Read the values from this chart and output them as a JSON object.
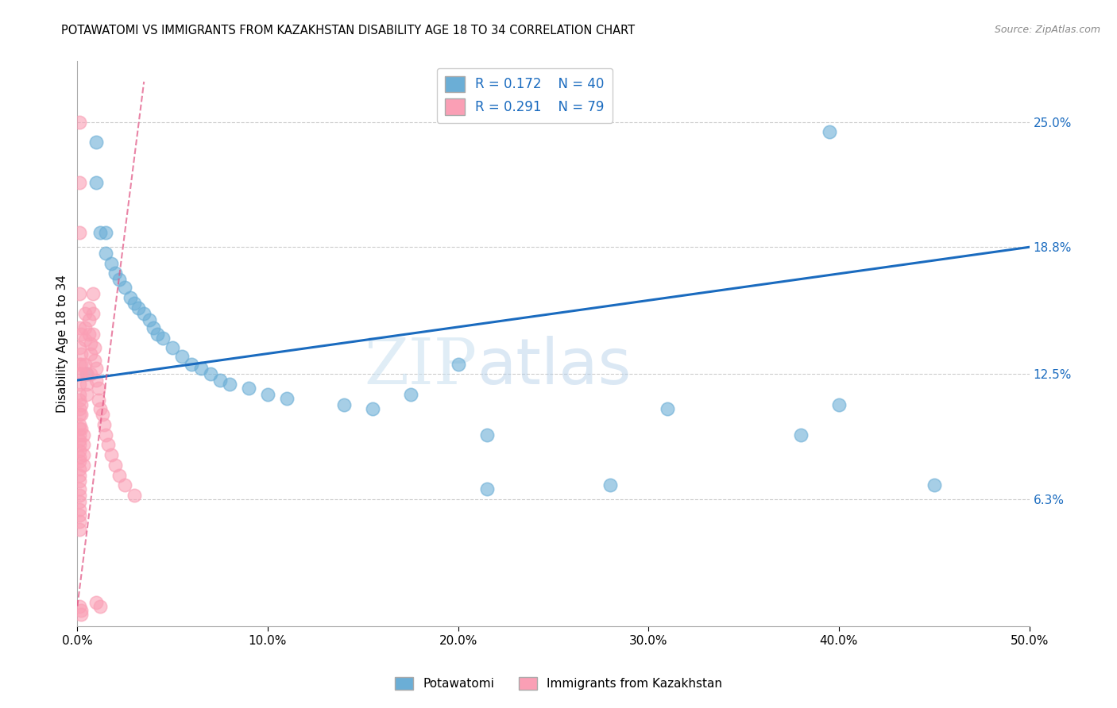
{
  "title": "POTAWATOMI VS IMMIGRANTS FROM KAZAKHSTAN DISABILITY AGE 18 TO 34 CORRELATION CHART",
  "source": "Source: ZipAtlas.com",
  "xlabel": "",
  "ylabel": "Disability Age 18 to 34",
  "xlim": [
    0.0,
    0.5
  ],
  "ylim": [
    0.0,
    0.28
  ],
  "yticks": [
    0.063,
    0.125,
    0.188,
    0.25
  ],
  "ytick_labels": [
    "6.3%",
    "12.5%",
    "18.8%",
    "25.0%"
  ],
  "xticks": [
    0.0,
    0.1,
    0.2,
    0.3,
    0.4,
    0.5
  ],
  "xtick_labels": [
    "0.0%",
    "10.0%",
    "20.0%",
    "30.0%",
    "40.0%",
    "50.0%"
  ],
  "legend_r1": "R = 0.172",
  "legend_n1": "N = 40",
  "legend_r2": "R = 0.291",
  "legend_n2": "N = 79",
  "blue_color": "#6baed6",
  "pink_color": "#fa9fb5",
  "trend_blue": "#1a6bbf",
  "trend_pink": "#e05080",
  "watermark": "ZIPatlas",
  "blue_x": [
    0.005,
    0.01,
    0.01,
    0.012,
    0.015,
    0.015,
    0.018,
    0.02,
    0.022,
    0.025,
    0.028,
    0.03,
    0.032,
    0.035,
    0.038,
    0.04,
    0.042,
    0.045,
    0.05,
    0.055,
    0.06,
    0.065,
    0.07,
    0.075,
    0.08,
    0.09,
    0.1,
    0.11,
    0.14,
    0.155,
    0.175,
    0.2,
    0.215,
    0.215,
    0.28,
    0.31,
    0.38,
    0.4,
    0.395,
    0.45
  ],
  "blue_y": [
    0.125,
    0.24,
    0.22,
    0.195,
    0.195,
    0.185,
    0.18,
    0.175,
    0.172,
    0.168,
    0.163,
    0.16,
    0.158,
    0.155,
    0.152,
    0.148,
    0.145,
    0.143,
    0.138,
    0.134,
    0.13,
    0.128,
    0.125,
    0.122,
    0.12,
    0.118,
    0.115,
    0.113,
    0.11,
    0.108,
    0.115,
    0.13,
    0.095,
    0.068,
    0.07,
    0.108,
    0.095,
    0.11,
    0.245,
    0.07
  ],
  "pink_x": [
    0.001,
    0.001,
    0.001,
    0.001,
    0.001,
    0.001,
    0.001,
    0.001,
    0.001,
    0.001,
    0.001,
    0.001,
    0.001,
    0.001,
    0.001,
    0.001,
    0.001,
    0.001,
    0.001,
    0.001,
    0.001,
    0.001,
    0.001,
    0.001,
    0.001,
    0.001,
    0.001,
    0.001,
    0.001,
    0.001,
    0.002,
    0.002,
    0.002,
    0.002,
    0.002,
    0.002,
    0.002,
    0.003,
    0.003,
    0.003,
    0.003,
    0.004,
    0.004,
    0.004,
    0.004,
    0.005,
    0.005,
    0.005,
    0.006,
    0.006,
    0.006,
    0.007,
    0.007,
    0.007,
    0.008,
    0.008,
    0.008,
    0.009,
    0.009,
    0.01,
    0.01,
    0.011,
    0.011,
    0.012,
    0.013,
    0.014,
    0.015,
    0.016,
    0.018,
    0.02,
    0.022,
    0.025,
    0.03,
    0.001,
    0.001,
    0.002,
    0.002,
    0.01,
    0.012
  ],
  "pink_y": [
    0.22,
    0.195,
    0.165,
    0.148,
    0.138,
    0.13,
    0.125,
    0.12,
    0.115,
    0.112,
    0.108,
    0.105,
    0.1,
    0.098,
    0.095,
    0.092,
    0.09,
    0.087,
    0.084,
    0.082,
    0.078,
    0.075,
    0.072,
    0.068,
    0.065,
    0.062,
    0.058,
    0.055,
    0.052,
    0.048,
    0.145,
    0.135,
    0.13,
    0.125,
    0.11,
    0.105,
    0.098,
    0.095,
    0.09,
    0.085,
    0.08,
    0.155,
    0.148,
    0.142,
    0.13,
    0.125,
    0.12,
    0.115,
    0.158,
    0.152,
    0.145,
    0.14,
    0.135,
    0.125,
    0.165,
    0.155,
    0.145,
    0.138,
    0.132,
    0.128,
    0.122,
    0.118,
    0.112,
    0.108,
    0.105,
    0.1,
    0.095,
    0.09,
    0.085,
    0.08,
    0.075,
    0.07,
    0.065,
    0.25,
    0.01,
    0.008,
    0.006,
    0.012,
    0.01
  ],
  "blue_trend_x": [
    0.0,
    0.5
  ],
  "blue_trend_y": [
    0.122,
    0.188
  ],
  "pink_trend_x": [
    0.0,
    0.035
  ],
  "pink_trend_y": [
    0.01,
    0.27
  ]
}
